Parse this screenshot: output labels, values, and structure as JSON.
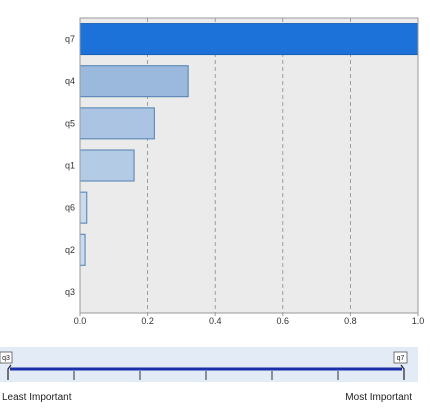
{
  "chart_data": {
    "type": "bar",
    "orientation": "horizontal",
    "categories": [
      "q7",
      "q4",
      "q5",
      "q1",
      "q6",
      "q2",
      "q3"
    ],
    "values": [
      1.0,
      0.32,
      0.22,
      0.16,
      0.02,
      0.015,
      0.0
    ],
    "xlim": [
      0,
      1.0
    ],
    "xticks": [
      "0.0",
      "0.2",
      "0.4",
      "0.6",
      "0.8",
      "1.0"
    ],
    "xtick_values": [
      0,
      0.2,
      0.4,
      0.6,
      0.8,
      1.0
    ],
    "grid": "vertical-dashed",
    "title": "",
    "xlabel": "",
    "ylabel": ""
  },
  "slider": {
    "min_marker": "q3",
    "max_marker": "q7",
    "least_label": "Least Important",
    "most_label": "Most Important"
  },
  "colors": {
    "plot_background": "#ebebeb",
    "plot_border": "#9a9a9a",
    "grid": "#8c8c8c",
    "max_bar_fill": "#1c72d8",
    "max_bar_stroke": "#155fb6",
    "bar_stroke": "#4f7fb2",
    "bar_fill_dark": "#8fb0d9",
    "bar_fill_light": "#dde8f5",
    "slider_background": "#e2ebf6",
    "slider_line": "#1a2fa8"
  }
}
